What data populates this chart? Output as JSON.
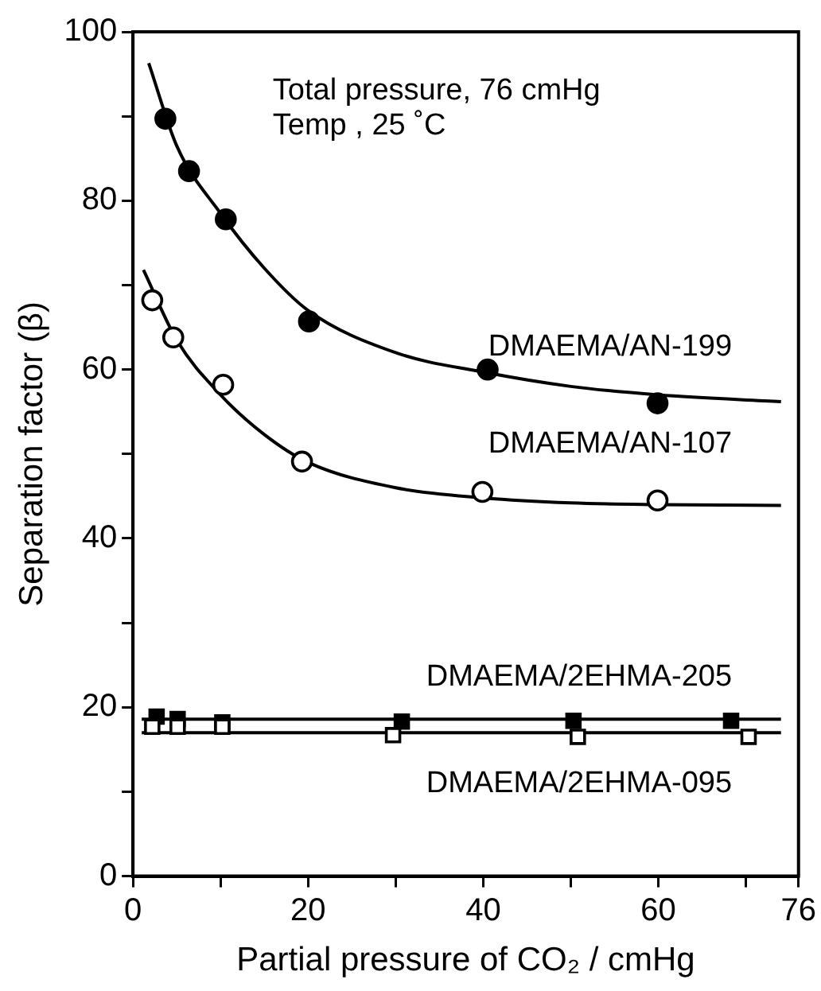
{
  "chart_data": {
    "type": "scatter",
    "xlabel": "Partial pressure of CO₂ / cmHg",
    "ylabel": "Separation factor (β)",
    "xlim": [
      0,
      76
    ],
    "xticks": [
      0,
      {
        "value": 10,
        "label": null
      },
      20,
      {
        "value": 30,
        "label": null
      },
      40,
      {
        "value": 50,
        "label": null
      },
      60,
      {
        "value": 70,
        "label": null
      },
      76
    ],
    "ylim": [
      0,
      100
    ],
    "yticks": [
      0,
      {
        "value": 10,
        "label": null
      },
      20,
      {
        "value": 30,
        "label": null
      },
      40,
      {
        "value": 50,
        "label": null
      },
      60,
      {
        "value": 70,
        "label": null
      },
      80,
      {
        "value": 90,
        "label": null
      },
      100
    ],
    "grid": false,
    "legend": false,
    "annotations": [
      "Total pressure, 76 cmHg",
      "Temp , 25 ˚C"
    ],
    "series": [
      {
        "name": "DMAEMA/AN-199",
        "marker": "circle",
        "color": "#000000",
        "x": [
          3.7,
          6.4,
          10.6,
          20.1,
          40.5,
          59.9
        ],
        "values": [
          89.7,
          83.5,
          77.8,
          65.7,
          60,
          56
        ]
      },
      {
        "type": "line",
        "color": "#000000",
        "x": [
          1.8,
          5,
          10,
          15,
          20,
          30,
          40,
          50,
          60,
          74
        ],
        "values": [
          96.3,
          86.5,
          78.5,
          72,
          67,
          62,
          59.7,
          58,
          57,
          56.2
        ]
      },
      {
        "name": "DMAEMA/AN-107",
        "marker": "circle",
        "color": "#ffffff",
        "x": [
          2.2,
          4.6,
          10.3,
          19.3,
          39.9,
          59.9
        ],
        "values": [
          68.2,
          63.8,
          58.2,
          49.1,
          45.5,
          44.5
        ]
      },
      {
        "type": "line",
        "color": "#000000",
        "x": [
          1.2,
          5,
          10,
          15,
          20,
          30,
          40,
          50,
          60,
          74
        ],
        "values": [
          71.8,
          63.5,
          57,
          52.3,
          49,
          46,
          44.8,
          44.2,
          44,
          43.9
        ]
      },
      {
        "name": "DMAEMA/2EHMA-205",
        "marker": "square",
        "color": "#000000",
        "x": [
          2.7,
          5.1,
          10.2,
          30.7,
          50.3,
          68.3
        ],
        "values": [
          18.9,
          18.6,
          18.2,
          18.3,
          18.4,
          18.4
        ]
      },
      {
        "type": "line",
        "color": "#000000",
        "x": [
          1,
          74
        ],
        "values": [
          18.6,
          18.6
        ]
      },
      {
        "name": "DMAEMA/2EHMA-095",
        "marker": "square",
        "color": "#ffffff",
        "x": [
          2.2,
          5.1,
          10.2,
          29.7,
          50.8,
          70.3
        ],
        "values": [
          17.7,
          17.7,
          17.7,
          16.7,
          16.5,
          16.5
        ]
      },
      {
        "type": "line",
        "color": "#000000",
        "x": [
          1,
          74
        ],
        "values": [
          17,
          17
        ]
      }
    ]
  }
}
